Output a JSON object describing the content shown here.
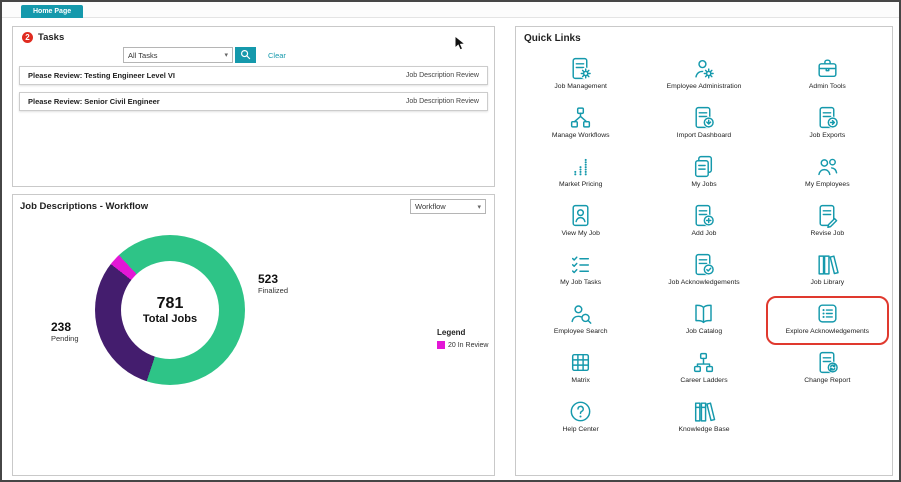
{
  "window": {
    "tab": "Home Page"
  },
  "tasks": {
    "badge_count": "2",
    "title": "Tasks",
    "filter_value": "All Tasks",
    "clear_label": "Clear",
    "rows": [
      {
        "title": "Please Review: Testing Engineer Level VI",
        "action": "Job Description Review"
      },
      {
        "title": "Please Review: Senior Civil Engineer",
        "action": "Job Description Review"
      }
    ]
  },
  "workflow_panel": {
    "title": "Job Descriptions - Workflow",
    "filter_value": "Workflow",
    "legend_title": "Legend",
    "legend_items": [
      {
        "label": "20 In Review",
        "color": "#e317d6"
      }
    ]
  },
  "chart_data": {
    "type": "pie",
    "donut": true,
    "title": "Job Descriptions - Workflow",
    "center_value": "781",
    "center_label": "Total Jobs",
    "total": 781,
    "start_angle_deg": 317,
    "slices": [
      {
        "label": "Finalized",
        "value": 523,
        "color": "#2ec487"
      },
      {
        "label": "Pending",
        "value": 238,
        "color": "#441d6e"
      },
      {
        "label": "In Review",
        "value": 20,
        "color": "#e317d6"
      }
    ],
    "legend_position": "right"
  },
  "quick_links": {
    "title": "Quick Links",
    "items": [
      {
        "label": "Job Management",
        "icon": "job-management-icon"
      },
      {
        "label": "Employee Administration",
        "icon": "employee-administration-icon"
      },
      {
        "label": "Admin Tools",
        "icon": "admin-tools-icon"
      },
      {
        "label": "Manage Workflows",
        "icon": "manage-workflows-icon"
      },
      {
        "label": "Import Dashboard",
        "icon": "import-dashboard-icon"
      },
      {
        "label": "Job Exports",
        "icon": "job-exports-icon"
      },
      {
        "label": "Market Pricing",
        "icon": "market-pricing-icon"
      },
      {
        "label": "My Jobs",
        "icon": "my-jobs-icon"
      },
      {
        "label": "My Employees",
        "icon": "my-employees-icon"
      },
      {
        "label": "View My Job",
        "icon": "view-my-job-icon"
      },
      {
        "label": "Add Job",
        "icon": "add-job-icon"
      },
      {
        "label": "Revise Job",
        "icon": "revise-job-icon"
      },
      {
        "label": "My Job Tasks",
        "icon": "my-job-tasks-icon"
      },
      {
        "label": "Job Acknowledgements",
        "icon": "job-acknowledgements-icon"
      },
      {
        "label": "Job Library",
        "icon": "job-library-icon"
      },
      {
        "label": "Employee Search",
        "icon": "employee-search-icon"
      },
      {
        "label": "Job Catalog",
        "icon": "job-catalog-icon"
      },
      {
        "label": "Explore Acknowledgements",
        "icon": "explore-acknowledgements-icon",
        "highlighted": true
      },
      {
        "label": "Matrix",
        "icon": "matrix-icon"
      },
      {
        "label": "Career Ladders",
        "icon": "career-ladders-icon"
      },
      {
        "label": "Change Report",
        "icon": "change-report-icon"
      },
      {
        "label": "Help Center",
        "icon": "help-center-icon"
      },
      {
        "label": "Knowledge Base",
        "icon": "knowledge-base-icon"
      }
    ]
  },
  "colors": {
    "accent": "#1599ac",
    "badge_red": "#e02b20",
    "highlight_red": "#e0392e"
  }
}
